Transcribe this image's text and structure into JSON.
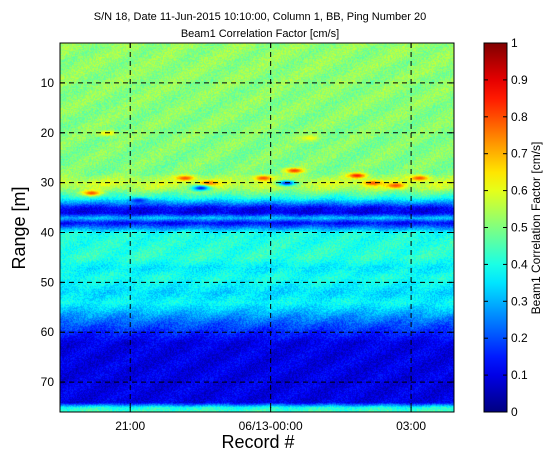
{
  "chart_data": {
    "type": "heatmap",
    "title": "S/N 18, Date 11-Jun-2015 10:10:00, Column 1, BB, Ping Number 20",
    "subtitle": "Beam1 Correlation Factor [cm/s]",
    "xlabel": "Record #",
    "ylabel": "Range [m]",
    "x_ticks": [
      "21:00",
      "06/13-00:00",
      "03:00"
    ],
    "y_ticks": [
      10,
      20,
      30,
      40,
      50,
      60,
      70
    ],
    "ylim": [
      2,
      76
    ],
    "y_reversed": true,
    "grid": true,
    "grid_style": "dashed",
    "colormap": "jet",
    "colorbar": {
      "label": "Beam1 Correlation Factor [cm/s]",
      "range": [
        0,
        1
      ],
      "ticks": [
        0,
        0.1,
        0.2,
        0.3,
        0.4,
        0.5,
        0.6,
        0.7,
        0.8,
        0.9,
        1
      ]
    },
    "range_profile": {
      "range_m": [
        2,
        28,
        30,
        31,
        33,
        35,
        36,
        37,
        38,
        40,
        45,
        47,
        49,
        52,
        54,
        56,
        58,
        62,
        74,
        75,
        76
      ],
      "value": [
        0.52,
        0.5,
        0.58,
        0.55,
        0.4,
        0.12,
        0.1,
        0.32,
        0.12,
        0.4,
        0.42,
        0.36,
        0.4,
        0.34,
        0.38,
        0.3,
        0.22,
        0.1,
        0.1,
        0.4,
        0.45
      ]
    },
    "features": [
      {
        "time": "20:10",
        "range_m": 32,
        "value": 0.8
      },
      {
        "time": "21:10",
        "range_m": 33.5,
        "value": 0.15
      },
      {
        "time": "22:10",
        "range_m": 29,
        "value": 0.8
      },
      {
        "time": "22:40",
        "range_m": 30,
        "value": 0.78
      },
      {
        "time": "22:30",
        "range_m": 31,
        "value": 0.15
      },
      {
        "time": "23:50",
        "range_m": 29,
        "value": 0.8
      },
      {
        "time": "00:30",
        "range_m": 27.5,
        "value": 0.82
      },
      {
        "time": "00:20",
        "range_m": 30,
        "value": 0.15
      },
      {
        "time": "01:50",
        "range_m": 28.5,
        "value": 0.85
      },
      {
        "time": "02:10",
        "range_m": 30,
        "value": 0.8
      },
      {
        "time": "02:40",
        "range_m": 30.5,
        "value": 0.8
      },
      {
        "time": "03:10",
        "range_m": 29,
        "value": 0.8
      },
      {
        "time": "00:50",
        "range_m": 21,
        "value": 0.62
      },
      {
        "time": "20:30",
        "range_m": 20,
        "value": 0.65
      }
    ]
  }
}
